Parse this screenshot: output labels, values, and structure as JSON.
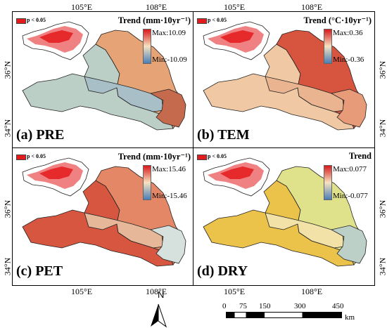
{
  "x_ticks": [
    "105°E",
    "108°E"
  ],
  "y_ticks": [
    "36°N",
    "34°N"
  ],
  "significance_label": "p < 0.05",
  "panels": [
    {
      "id": "a",
      "label": "(a) PRE",
      "trend_title": "Trend (mm·10yr⁻¹)",
      "max": "Max:10.09",
      "min": "Min:-10.09",
      "colors": {
        "west": "#bccfc6",
        "center": "#a9bfc8",
        "north": "#e6a476",
        "south": "#c66a4e"
      }
    },
    {
      "id": "b",
      "label": "(b) TEM",
      "trend_title": "Trend (°C·10yr⁻¹)",
      "max": "Max:0.36",
      "min": "Min:-0.36",
      "colors": {
        "west": "#f0c9a4",
        "center": "#ebb491",
        "north": "#d7543e",
        "south": "#e79b78"
      }
    },
    {
      "id": "c",
      "label": "(c) PET",
      "trend_title": "Trend (mm·10yr⁻¹)",
      "max": "Max:15.46",
      "min": "Min:-15.46",
      "colors": {
        "west": "#d7563f",
        "center": "#e6b799",
        "north": "#e48766",
        "south": "#d6e1dd"
      }
    },
    {
      "id": "d",
      "label": "(d) DRY",
      "trend_title": "Trend",
      "max": "Max:0.077",
      "min": "Min:-0.077",
      "colors": {
        "west": "#ebc24a",
        "center": "#f2e2a7",
        "north": "#dfe28b",
        "south": "#bcd0c8"
      }
    }
  ],
  "legend_colors": {
    "high": "#d7191c",
    "mid": "#f6e2c1",
    "low": "#4a7fb6"
  },
  "north_label": "N",
  "scale": {
    "ticks": [
      "0",
      "75",
      "150",
      "300",
      "450"
    ],
    "unit": "km"
  }
}
